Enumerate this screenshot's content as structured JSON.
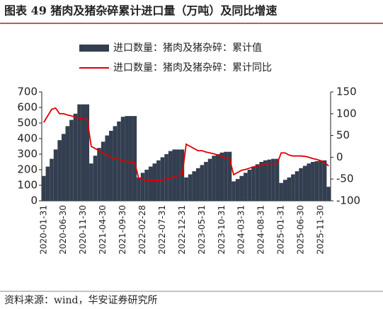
{
  "chart_data": {
    "type": "bar",
    "title": "图表 49 猪肉及猪杂碎累计进口量（万吨）及同比增速",
    "categories": [
      "2020-01-31",
      null,
      null,
      null,
      null,
      "2020-06-30",
      null,
      null,
      null,
      null,
      "2020-11-30",
      null,
      null,
      null,
      null,
      "2021-04-30",
      null,
      null,
      null,
      null,
      "2021-09-30",
      null,
      null,
      null,
      null,
      "2022-02-28",
      null,
      null,
      null,
      null,
      "2022-07-31",
      null,
      null,
      null,
      null,
      "2022-12-31",
      null,
      null,
      null,
      null,
      "2023-05-31",
      null,
      null,
      null,
      null,
      "2023-10-31",
      null,
      null,
      null,
      null,
      "2024-03-31",
      null,
      null,
      null,
      null,
      "2024-08-31",
      null,
      null,
      null,
      null,
      "2025-01-31",
      null,
      null,
      null,
      null,
      "2025-06-30",
      null,
      null,
      null,
      null,
      "2025-11-30",
      null,
      null
    ],
    "series": [
      {
        "name": "进口数量：猪肉及猪杂碎：累计值",
        "type": "bar",
        "color": "#333f50",
        "values": [
          160,
          220,
          270,
          330,
          390,
          430,
          480,
          520,
          560,
          620,
          620,
          620,
          240,
          290,
          340,
          380,
          420,
          450,
          480,
          510,
          540,
          545,
          545,
          545,
          150,
          180,
          200,
          220,
          240,
          260,
          280,
          300,
          320,
          330,
          330,
          330,
          150,
          170,
          190,
          210,
          230,
          250,
          270,
          290,
          300,
          310,
          315,
          315,
          125,
          140,
          160,
          180,
          200,
          220,
          235,
          250,
          260,
          265,
          270,
          270,
          115,
          135,
          150,
          170,
          190,
          210,
          225,
          240,
          250,
          255,
          260,
          260,
          90
        ]
      },
      {
        "name": "进口数量：猪肉及猪杂碎：累计同比",
        "type": "line",
        "axis": "y2",
        "color": "#e00000",
        "values": [
          80,
          95,
          110,
          113,
          100,
          100,
          97,
          95,
          92,
          90,
          88,
          87,
          25,
          20,
          15,
          10,
          5,
          0,
          -3,
          -5,
          -8,
          -10,
          -12,
          -13,
          -48,
          -50,
          -53,
          -53,
          -53,
          -53,
          -52,
          -50,
          -48,
          -45,
          -42,
          -40,
          30,
          25,
          20,
          15,
          15,
          12,
          10,
          8,
          5,
          2,
          -2,
          -5,
          -40,
          -35,
          -30,
          -28,
          -25,
          -22,
          -20,
          -18,
          -15,
          -15,
          -15,
          -15,
          10,
          10,
          5,
          3,
          3,
          3,
          2,
          0,
          -3,
          -5,
          -8,
          -12,
          -20
        ]
      }
    ],
    "ylim": [
      0,
      700
    ],
    "yticks": [
      0,
      100,
      200,
      300,
      400,
      500,
      600,
      700
    ],
    "y2lim": [
      -100,
      150
    ],
    "y2ticks": [
      -100,
      -50,
      0,
      50,
      100,
      150
    ],
    "source": "资料来源：wind，华安证券研究所"
  }
}
